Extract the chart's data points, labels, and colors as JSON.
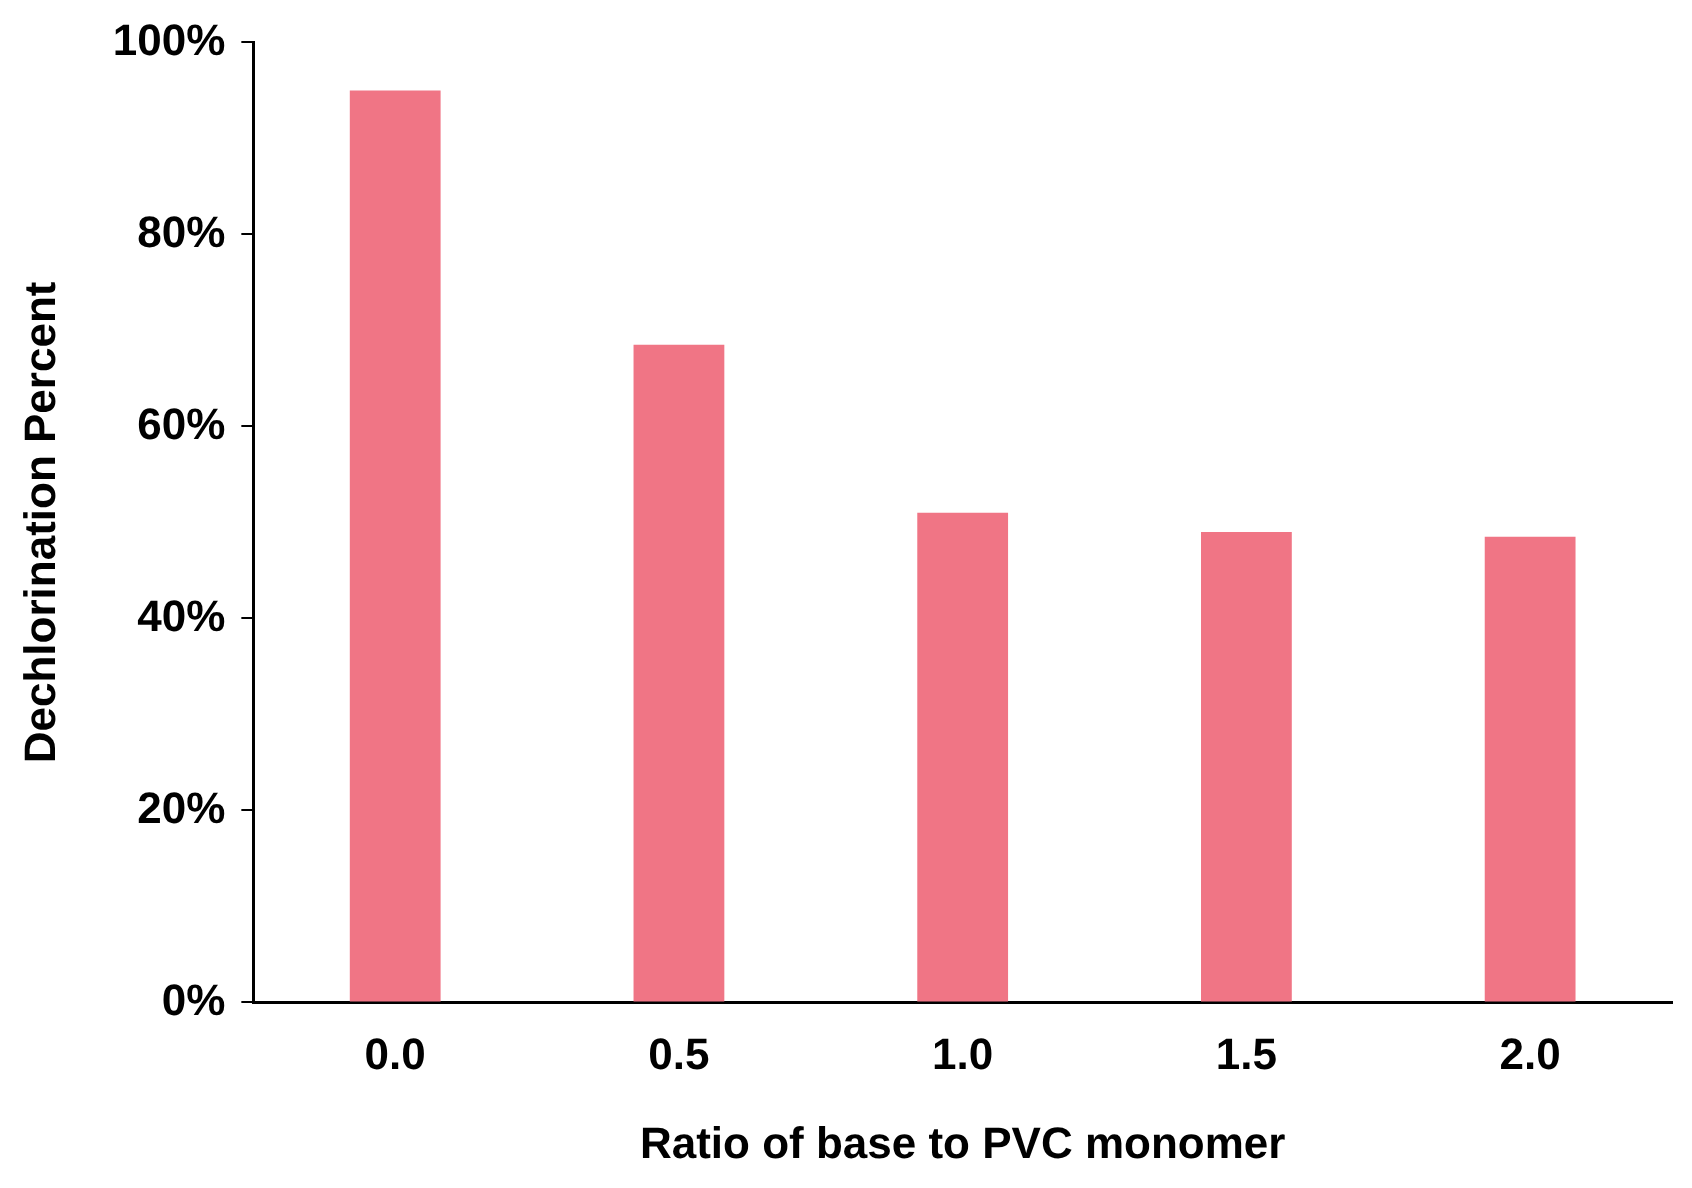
{
  "chart_data": {
    "type": "bar",
    "xlabel": "Ratio of base to PVC monomer",
    "ylabel": "Dechlorination Percent",
    "categories": [
      "0.0",
      "0.5",
      "1.0",
      "1.5",
      "2.0"
    ],
    "values": [
      95,
      68.5,
      51,
      49,
      48.5
    ],
    "color": "#f07585",
    "ylim": [
      0,
      100
    ],
    "yticks": [
      {
        "value": 0,
        "label": "0%"
      },
      {
        "value": 20,
        "label": "20%"
      },
      {
        "value": 40,
        "label": "40%"
      },
      {
        "value": 60,
        "label": "60%"
      },
      {
        "value": 80,
        "label": "80%"
      },
      {
        "value": 100,
        "label": "100%"
      }
    ],
    "grid": false,
    "legend": false
  }
}
